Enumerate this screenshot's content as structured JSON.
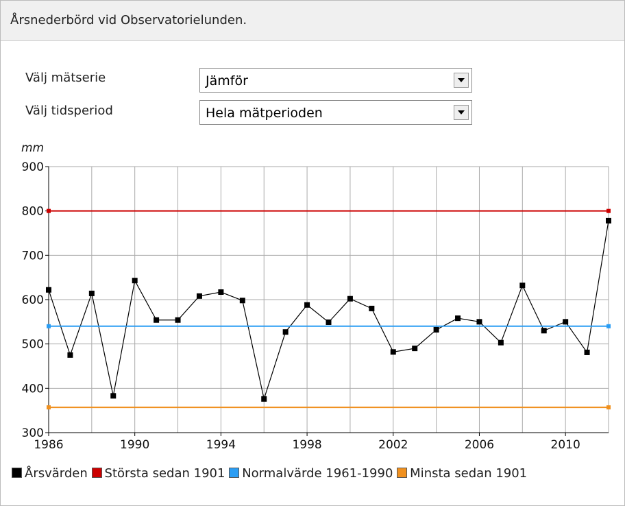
{
  "header": {
    "title": "Årsnederbörd vid Observatorielunden."
  },
  "controls": [
    {
      "label": "Välj mätserie",
      "selected": "Jämför"
    },
    {
      "label": "Välj tidsperiod",
      "selected": "Hela mätperioden"
    }
  ],
  "chart_data": {
    "type": "line",
    "ylabel": "mm",
    "x": [
      1986,
      1987,
      1988,
      1989,
      1990,
      1991,
      1992,
      1993,
      1994,
      1995,
      1996,
      1997,
      1998,
      1999,
      2000,
      2001,
      2002,
      2003,
      2004,
      2005,
      2006,
      2007,
      2008,
      2009,
      2010,
      2011,
      2012
    ],
    "xlim": [
      1986,
      2012
    ],
    "xticks": [
      1986,
      1990,
      1994,
      1998,
      2002,
      2006,
      2010
    ],
    "ylim": [
      300,
      900
    ],
    "yticks": [
      300,
      400,
      500,
      600,
      700,
      800,
      900
    ],
    "grid": true,
    "series": [
      {
        "name": "Årsvärden",
        "color": "#000000",
        "values": [
          622,
          475,
          614,
          383,
          643,
          554,
          554,
          608,
          617,
          598,
          376,
          527,
          588,
          549,
          602,
          580,
          482,
          490,
          532,
          558,
          550,
          503,
          632,
          530,
          550,
          481,
          778
        ]
      },
      {
        "name": "Största sedan 1901",
        "color": "#cc0000",
        "value": 800
      },
      {
        "name": "Normalvärde 1961-1990",
        "color": "#2a9df4",
        "value": 540
      },
      {
        "name": "Minsta sedan 1901",
        "color": "#f0901e",
        "value": 357
      }
    ]
  }
}
